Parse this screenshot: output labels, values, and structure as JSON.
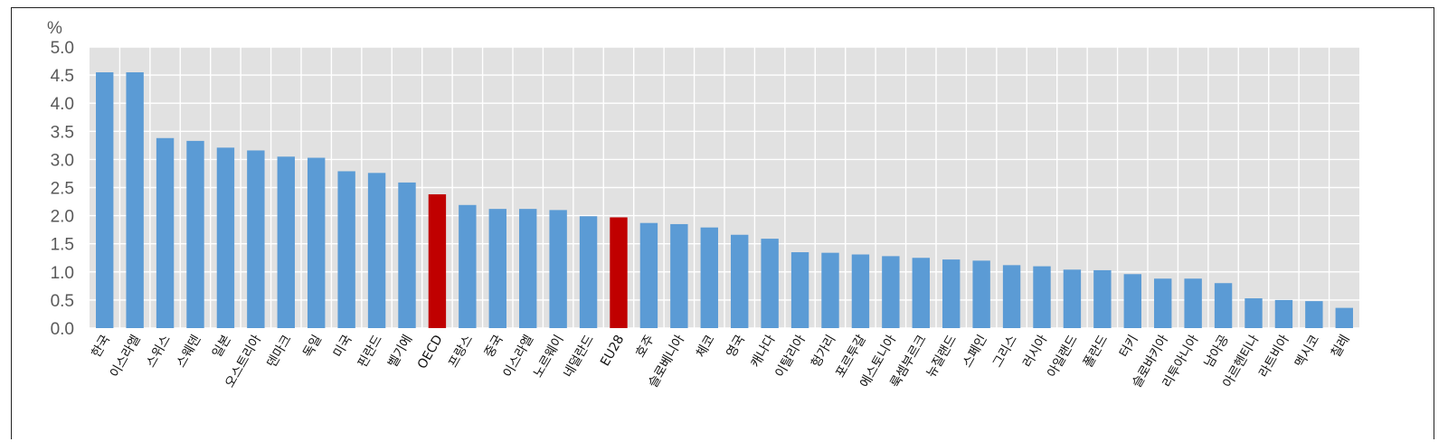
{
  "chart_data": {
    "type": "bar",
    "unit_label": "%",
    "ylim": [
      0,
      5
    ],
    "yticks": [
      "0.0",
      "0.5",
      "1.0",
      "1.5",
      "2.0",
      "2.5",
      "3.0",
      "3.5",
      "4.0",
      "4.5",
      "5.0"
    ],
    "grid": true,
    "categories": [
      "한국",
      "이스라엘",
      "스위스",
      "스웨덴",
      "일본",
      "오스트리아",
      "덴마크",
      "독일",
      "미국",
      "핀란드",
      "벨기에",
      "OECD",
      "프랑스",
      "중국",
      "이스라엘",
      "노르웨이",
      "네덜란드",
      "EU28",
      "호주",
      "슬로베니아",
      "체코",
      "영국",
      "캐나다",
      "이탈리아",
      "헝가리",
      "포르투갈",
      "에스토니아",
      "룩셈부르크",
      "뉴질랜드",
      "스페인",
      "그리스",
      "러시아",
      "아일랜드",
      "폴란드",
      "터키",
      "슬로바키아",
      "리투아니아",
      "남아공",
      "아르헨티나",
      "라트비아",
      "멕시코",
      "칠레"
    ],
    "values": [
      4.55,
      4.55,
      3.38,
      3.33,
      3.21,
      3.16,
      3.05,
      3.03,
      2.79,
      2.76,
      2.59,
      2.38,
      2.19,
      2.12,
      2.12,
      2.1,
      1.99,
      1.97,
      1.87,
      1.85,
      1.79,
      1.66,
      1.59,
      1.35,
      1.34,
      1.31,
      1.28,
      1.25,
      1.22,
      1.2,
      1.12,
      1.1,
      1.04,
      1.03,
      0.96,
      0.88,
      0.88,
      0.8,
      0.53,
      0.5,
      0.48,
      0.36
    ],
    "highlight": [
      "OECD",
      "EU28"
    ],
    "colors": {
      "bar": "#5b9bd5",
      "highlight": "#c00000",
      "plot_bg": "#e1e1e1",
      "grid": "#ffffff"
    }
  }
}
